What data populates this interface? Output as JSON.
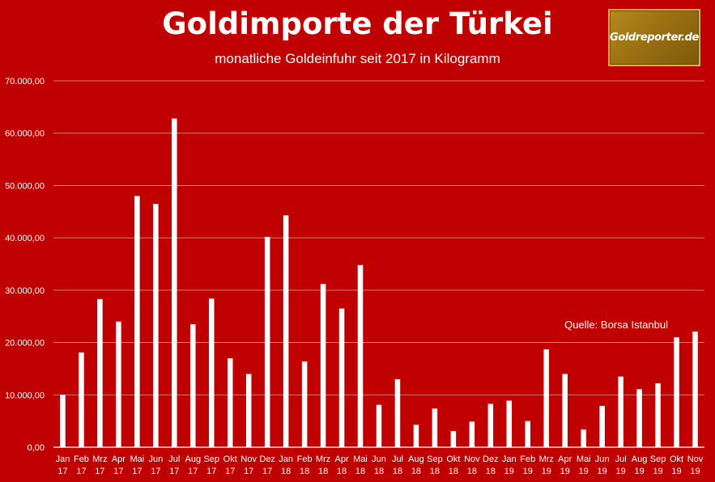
{
  "header": {
    "title": "Goldimporte der Türkei",
    "subtitle": "monatliche Goldeinfuhr seit 2017 in Kilogramm",
    "logo_text": "Goldreporter.de"
  },
  "source_note": "Quelle: Borsa Istanbul",
  "colors": {
    "background": "#C00000",
    "bar": "#FFFFFF",
    "grid": "#E8A0A0",
    "logo": "#9A7012"
  },
  "chart_data": {
    "type": "bar",
    "title": "Goldimporte der Türkei",
    "subtitle": "monatliche Goldeinfuhr seit 2017 in Kilogramm",
    "xlabel": "",
    "ylabel": "",
    "ylim": [
      0,
      70000
    ],
    "yticks": [
      "0,00",
      "10.000,00",
      "20.000,00",
      "30.000,00",
      "40.000,00",
      "50.000,00",
      "60.000,00",
      "70.000,00"
    ],
    "grid": true,
    "legend": "none",
    "categories": [
      [
        "Jan",
        "17"
      ],
      [
        "Feb",
        "17"
      ],
      [
        "Mrz",
        "17"
      ],
      [
        "Apr",
        "17"
      ],
      [
        "Mai",
        "17"
      ],
      [
        "Jun",
        "17"
      ],
      [
        "Jul",
        "17"
      ],
      [
        "Aug",
        "17"
      ],
      [
        "Sep",
        "17"
      ],
      [
        "Okt",
        "17"
      ],
      [
        "Nov",
        "17"
      ],
      [
        "Dez",
        "17"
      ],
      [
        "Jan",
        "18"
      ],
      [
        "Feb",
        "18"
      ],
      [
        "Mrz",
        "18"
      ],
      [
        "Apr",
        "18"
      ],
      [
        "Mai",
        "18"
      ],
      [
        "Jun",
        "18"
      ],
      [
        "Jul",
        "18"
      ],
      [
        "Aug",
        "18"
      ],
      [
        "Sep",
        "18"
      ],
      [
        "Okt",
        "18"
      ],
      [
        "Nov",
        "18"
      ],
      [
        "Dez",
        "18"
      ],
      [
        "Jan",
        "19"
      ],
      [
        "Feb",
        "19"
      ],
      [
        "Mrz",
        "19"
      ],
      [
        "Apr",
        "19"
      ],
      [
        "Mai",
        "19"
      ],
      [
        "Jun",
        "19"
      ],
      [
        "Jul",
        "19"
      ],
      [
        "Aug",
        "19"
      ],
      [
        "Sep",
        "19"
      ],
      [
        "Okt",
        "19"
      ],
      [
        "Nov",
        "19"
      ]
    ],
    "values": [
      10000,
      18100,
      28300,
      24000,
      48000,
      46500,
      62800,
      23500,
      28400,
      17000,
      14000,
      40200,
      44300,
      16400,
      31200,
      26500,
      34800,
      8100,
      13000,
      4300,
      7400,
      3100,
      4900,
      8300,
      8900,
      5000,
      18700,
      14000,
      3400,
      7900,
      13500,
      11100,
      12200,
      21000,
      22100
    ]
  }
}
